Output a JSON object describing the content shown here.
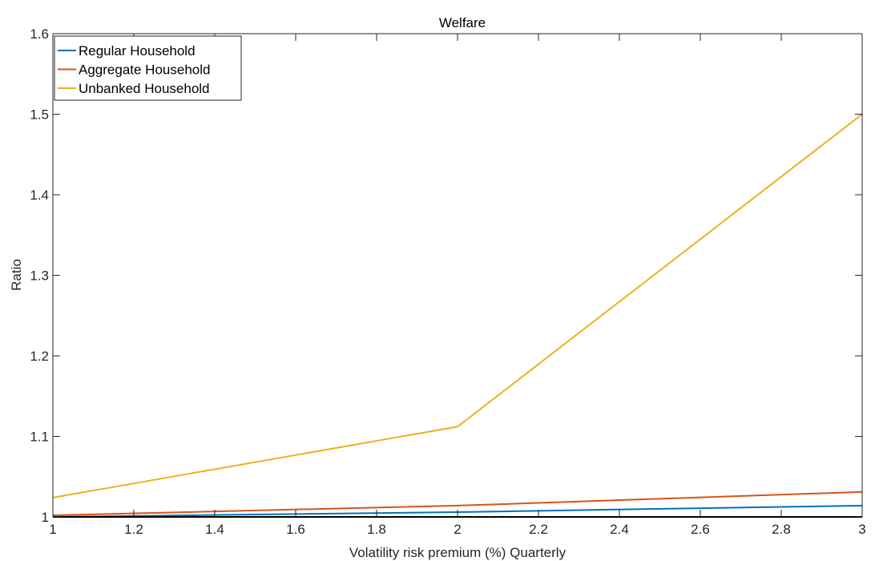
{
  "chart_data": {
    "type": "line",
    "title": "Welfare",
    "xlabel": "Volatility risk premium (%) Quarterly",
    "ylabel": "Ratio",
    "xlim": [
      1,
      3
    ],
    "ylim": [
      1,
      1.6
    ],
    "xticks": [
      1,
      1.2,
      1.4,
      1.6,
      1.8,
      2,
      2.2,
      2.4,
      2.6,
      2.8,
      3
    ],
    "xtick_labels": [
      "1",
      "1.2",
      "1.4",
      "1.6",
      "1.8",
      "2",
      "2.2",
      "2.4",
      "2.6",
      "2.8",
      "3"
    ],
    "yticks": [
      1,
      1.1,
      1.2,
      1.3,
      1.4,
      1.5,
      1.6
    ],
    "ytick_labels": [
      "1",
      "1.1",
      "1.2",
      "1.3",
      "1.4",
      "1.5",
      "1.6"
    ],
    "grid": false,
    "legend_position": "top-left",
    "x": [
      1,
      2,
      3
    ],
    "series": [
      {
        "name": "Regular Household",
        "color": "#0072BD",
        "values": [
          1.0,
          1.006,
          1.014
        ]
      },
      {
        "name": "Aggregate Household",
        "color": "#D95319",
        "values": [
          1.002,
          1.014,
          1.031
        ]
      },
      {
        "name": "Unbanked Household",
        "color": "#EDB120",
        "values": [
          1.024,
          1.112,
          1.5
        ]
      }
    ]
  }
}
